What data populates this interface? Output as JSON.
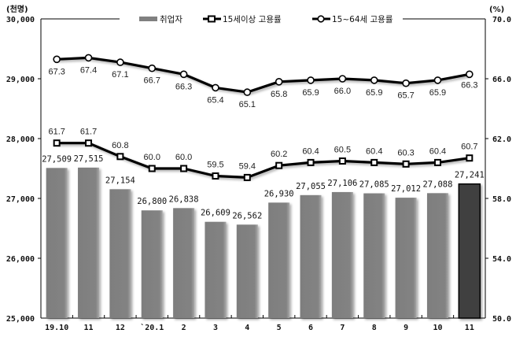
{
  "chart_data": {
    "type": "bar+line",
    "title": "",
    "categories": [
      "19.10",
      "11",
      "12",
      "`20.1",
      "2",
      "3",
      "4",
      "5",
      "6",
      "7",
      "8",
      "9",
      "10",
      "11"
    ],
    "left_axis": {
      "unit_label": "(천명)",
      "ylim": [
        25000,
        30000
      ],
      "ticks": [
        "30,000",
        "29,000",
        "28,000",
        "27,000",
        "26,000",
        "25,000"
      ]
    },
    "right_axis": {
      "unit_label": "(%)",
      "ylim": [
        50.0,
        70.0
      ],
      "ticks": [
        "70.0",
        "66.0",
        "62.0",
        "58.0",
        "54.0",
        "50.0"
      ]
    },
    "series": [
      {
        "name": "취업자",
        "kind": "bar",
        "axis": "left",
        "color": "#808080",
        "highlight_color": "#404040",
        "highlight_index": 13,
        "values": [
          27509,
          27515,
          27154,
          26800,
          26838,
          26609,
          26562,
          26930,
          27055,
          27106,
          27085,
          27012,
          27088,
          27241
        ],
        "labels": [
          "27,509",
          "27,515",
          "27,154",
          "26,800",
          "26,838",
          "26,609",
          "26,562",
          "26,930",
          "27,055",
          "27,106",
          "27,085",
          "27,012",
          "27,088",
          "27,241"
        ]
      },
      {
        "name": "15세이상 고용률",
        "kind": "line",
        "marker": "square",
        "axis": "right",
        "color": "#000000",
        "values": [
          61.7,
          61.7,
          60.8,
          60.0,
          60.0,
          59.5,
          59.4,
          60.2,
          60.4,
          60.5,
          60.4,
          60.3,
          60.4,
          60.7
        ],
        "labels": [
          "61.7",
          "61.7",
          "60.8",
          "60.0",
          "60.0",
          "59.5",
          "59.4",
          "60.2",
          "60.4",
          "60.5",
          "60.4",
          "60.3",
          "60.4",
          "60.7"
        ]
      },
      {
        "name": "15~64세 고용률",
        "kind": "line",
        "marker": "circle",
        "axis": "right",
        "color": "#000000",
        "values": [
          67.3,
          67.4,
          67.1,
          66.7,
          66.3,
          65.4,
          65.1,
          65.8,
          65.9,
          66.0,
          65.9,
          65.7,
          65.9,
          66.3
        ],
        "labels": [
          "67.3",
          "67.4",
          "67.1",
          "66.7",
          "66.3",
          "65.4",
          "65.1",
          "65.8",
          "65.9",
          "66.0",
          "65.9",
          "65.7",
          "65.9",
          "66.3"
        ]
      }
    ],
    "legend": {
      "position": "top",
      "entries": [
        "취업자",
        "15세이상 고용률",
        "15~64세 고용률"
      ]
    },
    "grid": false
  }
}
